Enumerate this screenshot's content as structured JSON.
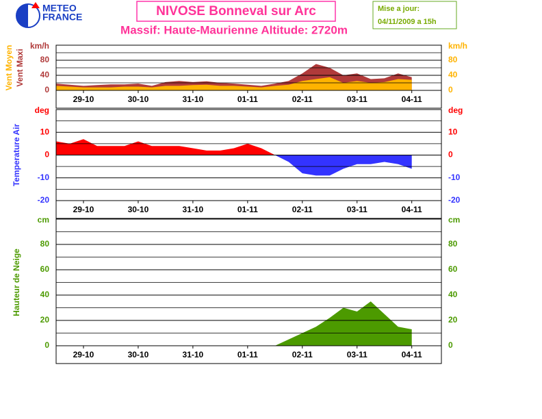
{
  "header": {
    "title": "NIVOSE Bonneval sur Arc",
    "subtitle": "Massif: Haute-Maurienne Altitude: 2720m",
    "update_label": "Mise a jour:",
    "update_date": "04/11/2009 a 15h",
    "logo": [
      "METEO",
      "FRANCE"
    ]
  },
  "chart_data": [
    {
      "type": "area",
      "unit": "km/h",
      "x": [
        0,
        6,
        12,
        18,
        24,
        30,
        36,
        42,
        48,
        54,
        60,
        66,
        72,
        78,
        84,
        90,
        96,
        102,
        108,
        114,
        120,
        126,
        132,
        138,
        144,
        150,
        156
      ],
      "xlim": [
        0,
        169
      ],
      "xticks": [
        {
          "value": 12,
          "label": "29-10"
        },
        {
          "value": 36,
          "label": "30-10"
        },
        {
          "value": 60,
          "label": "31-10"
        },
        {
          "value": 84,
          "label": "01-11"
        },
        {
          "value": 108,
          "label": "02-11"
        },
        {
          "value": 132,
          "label": "03-11"
        },
        {
          "value": 156,
          "label": "04-11"
        }
      ],
      "ylim": [
        0,
        120
      ],
      "yticks": [
        0,
        40,
        80
      ],
      "minor_yticks": [
        20,
        60,
        100
      ],
      "series": [
        {
          "name": "Vent Maxi",
          "color": "#b03a3a",
          "values": [
            18,
            15,
            12,
            14,
            16,
            16,
            18,
            12,
            22,
            25,
            22,
            24,
            20,
            18,
            15,
            12,
            18,
            25,
            45,
            70,
            60,
            40,
            45,
            30,
            32,
            45,
            35
          ]
        },
        {
          "name": "Vent Moyen",
          "color": "#ffb300",
          "values": [
            12,
            10,
            8,
            8,
            8,
            10,
            10,
            8,
            12,
            12,
            14,
            15,
            12,
            12,
            10,
            8,
            12,
            15,
            25,
            30,
            35,
            20,
            25,
            20,
            22,
            30,
            28
          ]
        }
      ]
    },
    {
      "type": "signed_area",
      "unit": "deg",
      "ylabel": "Temperature Air",
      "color_positive": "#ff0000",
      "color_negative": "#3333ff",
      "x": [
        0,
        6,
        12,
        18,
        24,
        30,
        36,
        42,
        48,
        54,
        60,
        66,
        72,
        78,
        84,
        90,
        96,
        102,
        108,
        114,
        120,
        126,
        132,
        138,
        144,
        150,
        156
      ],
      "xlim": [
        0,
        169
      ],
      "xticks": [
        {
          "value": 12,
          "label": "29-10"
        },
        {
          "value": 36,
          "label": "30-10"
        },
        {
          "value": 60,
          "label": "31-10"
        },
        {
          "value": 84,
          "label": "01-11"
        },
        {
          "value": 108,
          "label": "02-11"
        },
        {
          "value": 132,
          "label": "03-11"
        },
        {
          "value": 156,
          "label": "04-11"
        }
      ],
      "ylim": [
        -20,
        20
      ],
      "yticks": [
        -20,
        -10,
        0,
        10
      ],
      "minor_yticks": [
        -15,
        -5,
        5,
        15
      ],
      "series": [
        {
          "values": [
            6,
            5,
            7,
            4,
            4,
            4,
            6,
            4,
            4,
            4,
            3,
            2,
            2,
            3,
            5,
            3,
            0,
            -3,
            -8,
            -9,
            -9,
            -6,
            -4,
            -4,
            -3,
            -4,
            -6
          ]
        }
      ]
    },
    {
      "type": "area",
      "unit": "cm",
      "ylabel": "Hauteur de Neige",
      "x": [
        0,
        6,
        12,
        18,
        24,
        30,
        36,
        42,
        48,
        54,
        60,
        66,
        72,
        78,
        84,
        90,
        96,
        102,
        108,
        114,
        120,
        126,
        132,
        138,
        144,
        150,
        156
      ],
      "xlim": [
        0,
        169
      ],
      "xticks": [
        {
          "value": 12,
          "label": "29-10"
        },
        {
          "value": 36,
          "label": "30-10"
        },
        {
          "value": 60,
          "label": "31-10"
        },
        {
          "value": 84,
          "label": "01-11"
        },
        {
          "value": 108,
          "label": "02-11"
        },
        {
          "value": 132,
          "label": "03-11"
        },
        {
          "value": 156,
          "label": "04-11"
        }
      ],
      "ylim": [
        0,
        100
      ],
      "yticks": [
        0,
        20,
        40,
        60,
        80
      ],
      "minor_yticks": [
        10,
        30,
        50,
        70,
        90
      ],
      "series": [
        {
          "color": "#4c9a00",
          "values": [
            0,
            0,
            0,
            0,
            0,
            0,
            0,
            0,
            0,
            0,
            0,
            0,
            0,
            0,
            0,
            0,
            0,
            5,
            10,
            15,
            22,
            30,
            27,
            35,
            25,
            15,
            13
          ]
        }
      ]
    }
  ]
}
